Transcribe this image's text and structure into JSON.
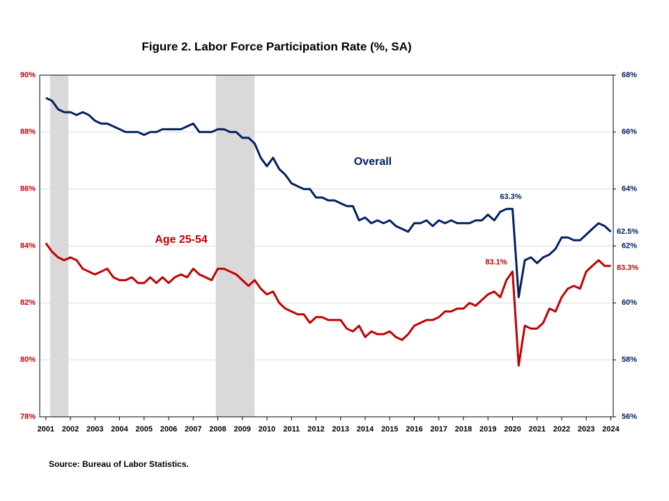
{
  "chart_data": {
    "type": "line",
    "title": "Figure 2. Labor Force Participation  Rate (%, SA)",
    "source": "Source: Bureau of Labor Statistics.",
    "x": [
      2001,
      2001.25,
      2001.5,
      2001.75,
      2002,
      2002.25,
      2002.5,
      2002.75,
      2003,
      2003.25,
      2003.5,
      2003.75,
      2004,
      2004.25,
      2004.5,
      2004.75,
      2005,
      2005.25,
      2005.5,
      2005.75,
      2006,
      2006.25,
      2006.5,
      2006.75,
      2007,
      2007.25,
      2007.5,
      2007.75,
      2008,
      2008.25,
      2008.5,
      2008.75,
      2009,
      2009.25,
      2009.5,
      2009.75,
      2010,
      2010.25,
      2010.5,
      2010.75,
      2011,
      2011.25,
      2011.5,
      2011.75,
      2012,
      2012.25,
      2012.5,
      2012.75,
      2013,
      2013.25,
      2013.5,
      2013.75,
      2014,
      2014.25,
      2014.5,
      2014.75,
      2015,
      2015.25,
      2015.5,
      2015.75,
      2016,
      2016.25,
      2016.5,
      2016.75,
      2017,
      2017.25,
      2017.5,
      2017.75,
      2018,
      2018.25,
      2018.5,
      2018.75,
      2019,
      2019.25,
      2019.5,
      2019.75,
      2020,
      2020.25,
      2020.5,
      2020.75,
      2021,
      2021.25,
      2021.5,
      2021.75,
      2022,
      2022.25,
      2022.5,
      2022.75,
      2023,
      2023.25,
      2023.5,
      2023.75,
      2024
    ],
    "series": [
      {
        "name": "Overall",
        "color": "#002060",
        "axis": "y2",
        "values": [
          67.2,
          67.1,
          66.8,
          66.7,
          66.7,
          66.6,
          66.7,
          66.6,
          66.4,
          66.3,
          66.3,
          66.2,
          66.1,
          66.0,
          66.0,
          66.0,
          65.9,
          66.0,
          66.0,
          66.1,
          66.1,
          66.1,
          66.1,
          66.2,
          66.3,
          66.0,
          66.0,
          66.0,
          66.1,
          66.1,
          66.0,
          66.0,
          65.8,
          65.8,
          65.6,
          65.1,
          64.8,
          65.1,
          64.7,
          64.5,
          64.2,
          64.1,
          64.0,
          64.0,
          63.7,
          63.7,
          63.6,
          63.6,
          63.5,
          63.4,
          63.4,
          62.9,
          63.0,
          62.8,
          62.9,
          62.8,
          62.9,
          62.7,
          62.6,
          62.5,
          62.8,
          62.8,
          62.9,
          62.7,
          62.9,
          62.8,
          62.9,
          62.8,
          62.8,
          62.8,
          62.9,
          62.9,
          63.1,
          62.9,
          63.2,
          63.3,
          63.3,
          60.2,
          61.5,
          61.6,
          61.4,
          61.6,
          61.7,
          61.9,
          62.3,
          62.3,
          62.2,
          62.2,
          62.4,
          62.6,
          62.8,
          62.7,
          62.5
        ]
      },
      {
        "name": "Age 25-54",
        "color": "#c00000",
        "axis": "y",
        "values": [
          84.1,
          83.8,
          83.6,
          83.5,
          83.6,
          83.5,
          83.2,
          83.1,
          83.0,
          83.1,
          83.2,
          82.9,
          82.8,
          82.8,
          82.9,
          82.7,
          82.7,
          82.9,
          82.7,
          82.9,
          82.7,
          82.9,
          83.0,
          82.9,
          83.2,
          83.0,
          82.9,
          82.8,
          83.2,
          83.2,
          83.1,
          83.0,
          82.8,
          82.6,
          82.8,
          82.5,
          82.3,
          82.4,
          82.0,
          81.8,
          81.7,
          81.6,
          81.6,
          81.3,
          81.5,
          81.5,
          81.4,
          81.4,
          81.4,
          81.1,
          81.0,
          81.2,
          80.8,
          81.0,
          80.9,
          80.9,
          81.0,
          80.8,
          80.7,
          80.9,
          81.2,
          81.3,
          81.4,
          81.4,
          81.5,
          81.7,
          81.7,
          81.8,
          81.8,
          82.0,
          81.9,
          82.1,
          82.3,
          82.4,
          82.2,
          82.8,
          83.1,
          79.8,
          81.2,
          81.1,
          81.1,
          81.3,
          81.8,
          81.7,
          82.2,
          82.5,
          82.6,
          82.5,
          83.1,
          83.3,
          83.5,
          83.3,
          83.3
        ]
      }
    ],
    "annotations": [
      "63.3%",
      "83.1%",
      "62.5%",
      "83.3%"
    ],
    "recessions": [
      [
        2001.17,
        2001.92
      ],
      [
        2007.92,
        2009.5
      ]
    ],
    "xlim": [
      2000.75,
      2024.1
    ],
    "xticks": [
      2001,
      2002,
      2003,
      2004,
      2005,
      2006,
      2007,
      2008,
      2009,
      2010,
      2011,
      2012,
      2013,
      2014,
      2015,
      2016,
      2017,
      2018,
      2019,
      2020,
      2021,
      2022,
      2023,
      2024
    ],
    "ylim": [
      78,
      90
    ],
    "yticks": [
      {
        "value": 78,
        "label": "78%"
      },
      {
        "value": 80,
        "label": "80%"
      },
      {
        "value": 82,
        "label": "82%"
      },
      {
        "value": 84,
        "label": "84%"
      },
      {
        "value": 86,
        "label": "86%"
      },
      {
        "value": 88,
        "label": "88%"
      },
      {
        "value": 90,
        "label": "90%"
      }
    ],
    "y2lim": [
      56,
      68
    ],
    "y2ticks": [
      {
        "value": 56,
        "label": "56%"
      },
      {
        "value": 58,
        "label": "58%"
      },
      {
        "value": 60,
        "label": "60%"
      },
      {
        "value": 62,
        "label": "62%"
      },
      {
        "value": 64,
        "label": "64%"
      },
      {
        "value": 66,
        "label": "66%"
      },
      {
        "value": 68,
        "label": "68%"
      }
    ],
    "grid": true
  }
}
